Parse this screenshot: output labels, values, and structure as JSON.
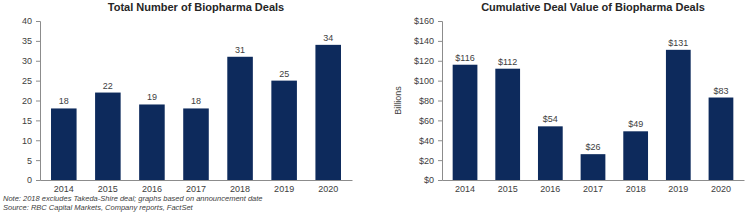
{
  "chart_data": [
    {
      "type": "bar",
      "title": "Total Number of Biopharma Deals",
      "categories": [
        "2014",
        "2015",
        "2016",
        "2017",
        "2018",
        "2019",
        "2020"
      ],
      "values": [
        18,
        22,
        19,
        18,
        31,
        25,
        34
      ],
      "color": "#0d2a5c",
      "ylim": [
        0,
        40
      ],
      "yticks": [
        0,
        5,
        10,
        15,
        20,
        25,
        30,
        35,
        40
      ],
      "grid": false,
      "data_labels": true
    },
    {
      "type": "bar",
      "title": "Cumulative Deal Value of Biopharma Deals",
      "y_label": "Billions",
      "categories": [
        "2014",
        "2015",
        "2016",
        "2017",
        "2018",
        "2019",
        "2020"
      ],
      "values": [
        116,
        112,
        54,
        26,
        49,
        131,
        83
      ],
      "value_labels": [
        "$116",
        "$112",
        "$54",
        "$26",
        "$49",
        "$131",
        "$83"
      ],
      "color": "#0d2a5c",
      "ylim": [
        0,
        160
      ],
      "yticks": [
        {
          "value": 0,
          "label": "$0"
        },
        {
          "value": 20,
          "label": "$20"
        },
        {
          "value": 40,
          "label": "$40"
        },
        {
          "value": 60,
          "label": "$60"
        },
        {
          "value": 80,
          "label": "$80"
        },
        {
          "value": 100,
          "label": "$100"
        },
        {
          "value": 120,
          "label": "$120"
        },
        {
          "value": 140,
          "label": "$140"
        },
        {
          "value": 160,
          "label": "$160"
        }
      ],
      "grid": false,
      "data_labels": true
    }
  ],
  "notes": [
    "Note: 2018 excludes Takeda-Shire deal; graphs based on announcement date",
    "Source: RBC Capital Markets, Company reports, FactSet"
  ]
}
